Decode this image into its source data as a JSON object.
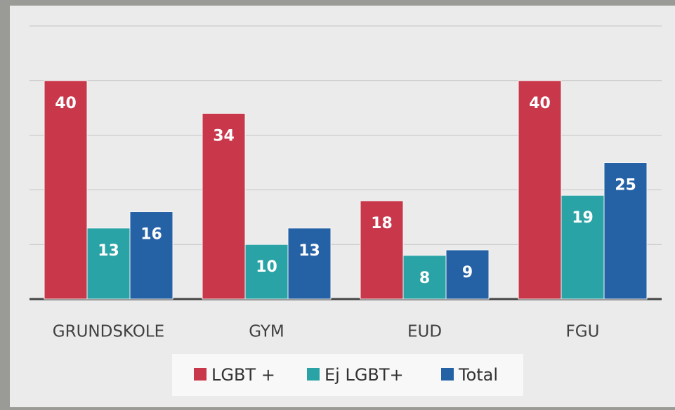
{
  "chart_data": {
    "type": "bar",
    "categories": [
      "GRUNDSKOLE",
      "GYM",
      "EUD",
      "FGU"
    ],
    "series": [
      {
        "name": "LGBT +",
        "color": "#c9374a",
        "values": [
          40,
          34,
          18,
          40
        ]
      },
      {
        "name": "Ej LGBT+",
        "color": "#2aa3a6",
        "values": [
          13,
          10,
          8,
          19
        ]
      },
      {
        "name": "Total",
        "color": "#2561a5",
        "values": [
          16,
          13,
          9,
          25
        ]
      }
    ],
    "ylim": [
      0,
      50
    ],
    "yticks": [
      0,
      10,
      20,
      30,
      40,
      50
    ],
    "grid": true,
    "legend": "bottom"
  }
}
